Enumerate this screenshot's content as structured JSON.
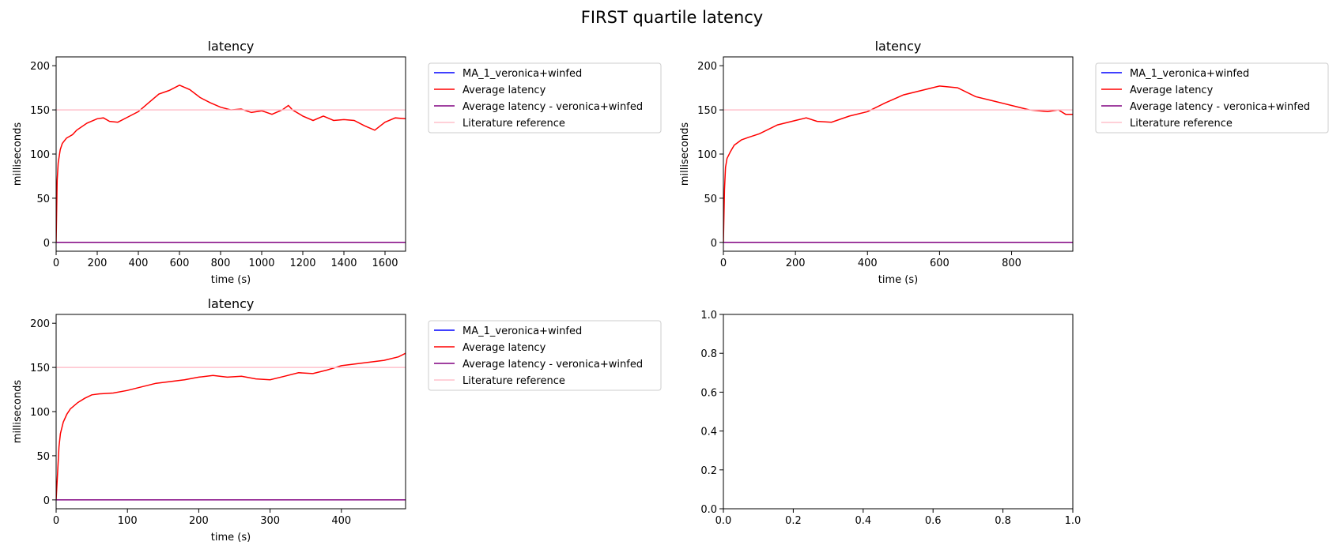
{
  "figure": {
    "suptitle": "FIRST quartile latency"
  },
  "chart_data": [
    {
      "type": "line",
      "title": "latency",
      "xlabel": "time (s)",
      "ylabel": "milliseconds",
      "xlim": [
        0,
        1700
      ],
      "ylim": [
        -10,
        210
      ],
      "xticks": [
        0,
        200,
        400,
        600,
        800,
        1000,
        1200,
        1400,
        1600
      ],
      "yticks": [
        0,
        50,
        100,
        150,
        200
      ],
      "grid": false,
      "legend_position": "outside-right",
      "legend": [
        "MA_1_veronica+winfed",
        "Average latency",
        "Average latency - veronica+winfed",
        "Literature reference"
      ],
      "series": [
        {
          "name": "MA_1_veronica+winfed",
          "color": "#0000ff",
          "x": [
            0,
            1700
          ],
          "y": [
            0,
            0
          ]
        },
        {
          "name": "Average latency",
          "color": "#ff0000",
          "x": [
            0,
            5,
            10,
            20,
            30,
            50,
            80,
            100,
            150,
            200,
            230,
            260,
            300,
            350,
            400,
            450,
            500,
            550,
            600,
            650,
            700,
            750,
            800,
            850,
            900,
            950,
            1000,
            1050,
            1100,
            1130,
            1150,
            1200,
            1250,
            1300,
            1350,
            1400,
            1450,
            1500,
            1550,
            1600,
            1650,
            1700
          ],
          "y": [
            0,
            70,
            90,
            105,
            112,
            118,
            122,
            127,
            135,
            140,
            141,
            137,
            136,
            142,
            148,
            158,
            168,
            172,
            178,
            173,
            164,
            158,
            153,
            150,
            151,
            147,
            149,
            145,
            150,
            155,
            150,
            143,
            138,
            143,
            138,
            139,
            138,
            132,
            127,
            136,
            141,
            140
          ]
        },
        {
          "name": "Average latency - veronica+winfed",
          "color": "#800080",
          "x": [
            0,
            1700
          ],
          "y": [
            0,
            0
          ]
        },
        {
          "name": "Literature reference",
          "color": "#ffc0cb",
          "x": [
            0,
            1700
          ],
          "y": [
            150,
            150
          ]
        }
      ]
    },
    {
      "type": "line",
      "title": "latency",
      "xlabel": "time (s)",
      "ylabel": "milliseconds",
      "xlim": [
        0,
        970
      ],
      "ylim": [
        -10,
        210
      ],
      "xticks": [
        0,
        200,
        400,
        600,
        800
      ],
      "yticks": [
        0,
        50,
        100,
        150,
        200
      ],
      "grid": false,
      "legend_position": "outside-right",
      "legend": [
        "MA_1_veronica+winfed",
        "Average latency",
        "Average latency - veronica+winfed",
        "Literature reference"
      ],
      "series": [
        {
          "name": "MA_1_veronica+winfed",
          "color": "#0000ff",
          "x": [
            0,
            970
          ],
          "y": [
            0,
            0
          ]
        },
        {
          "name": "Average latency",
          "color": "#ff0000",
          "x": [
            0,
            3,
            6,
            10,
            20,
            30,
            50,
            70,
            100,
            150,
            200,
            230,
            260,
            300,
            350,
            400,
            450,
            500,
            550,
            600,
            650,
            700,
            750,
            800,
            850,
            900,
            930,
            950,
            970
          ],
          "y": [
            0,
            60,
            85,
            95,
            103,
            110,
            116,
            119,
            123,
            133,
            138,
            141,
            137,
            136,
            143,
            148,
            158,
            167,
            172,
            177,
            175,
            165,
            160,
            155,
            150,
            148,
            150,
            145,
            145
          ]
        },
        {
          "name": "Average latency - veronica+winfed",
          "color": "#800080",
          "x": [
            0,
            970
          ],
          "y": [
            0,
            0
          ]
        },
        {
          "name": "Literature reference",
          "color": "#ffc0cb",
          "x": [
            0,
            970
          ],
          "y": [
            150,
            150
          ]
        }
      ]
    },
    {
      "type": "line",
      "title": "latency",
      "xlabel": "time (s)",
      "ylabel": "milliseconds",
      "xlim": [
        0,
        490
      ],
      "ylim": [
        -10,
        210
      ],
      "xticks": [
        0,
        100,
        200,
        300,
        400
      ],
      "yticks": [
        0,
        50,
        100,
        150,
        200
      ],
      "grid": false,
      "legend_position": "outside-right",
      "legend": [
        "MA_1_veronica+winfed",
        "Average latency",
        "Average latency - veronica+winfed",
        "Literature reference"
      ],
      "series": [
        {
          "name": "MA_1_veronica+winfed",
          "color": "#0000ff",
          "x": [
            0,
            490
          ],
          "y": [
            0,
            0
          ]
        },
        {
          "name": "Average latency",
          "color": "#ff0000",
          "x": [
            0,
            2,
            4,
            6,
            10,
            15,
            20,
            30,
            40,
            50,
            60,
            80,
            100,
            120,
            140,
            160,
            180,
            200,
            220,
            240,
            260,
            280,
            300,
            320,
            340,
            360,
            380,
            400,
            420,
            440,
            460,
            480,
            490
          ],
          "y": [
            0,
            30,
            60,
            75,
            88,
            97,
            103,
            110,
            115,
            119,
            120,
            121,
            124,
            128,
            132,
            134,
            136,
            139,
            141,
            139,
            140,
            137,
            136,
            140,
            144,
            143,
            147,
            152,
            154,
            156,
            158,
            162,
            166
          ]
        },
        {
          "name": "Average latency - veronica+winfed",
          "color": "#800080",
          "x": [
            0,
            490
          ],
          "y": [
            0,
            0
          ]
        },
        {
          "name": "Literature reference",
          "color": "#ffc0cb",
          "x": [
            0,
            490
          ],
          "y": [
            150,
            150
          ]
        }
      ]
    },
    {
      "type": "line",
      "title": "",
      "xlabel": "",
      "ylabel": "",
      "xlim": [
        0,
        1
      ],
      "ylim": [
        0,
        1
      ],
      "xticks": [
        0.0,
        0.2,
        0.4,
        0.6,
        0.8,
        1.0
      ],
      "yticks": [
        0.0,
        0.2,
        0.4,
        0.6,
        0.8,
        1.0
      ],
      "tick_format": "1dp",
      "grid": false,
      "legend": [],
      "series": []
    }
  ]
}
